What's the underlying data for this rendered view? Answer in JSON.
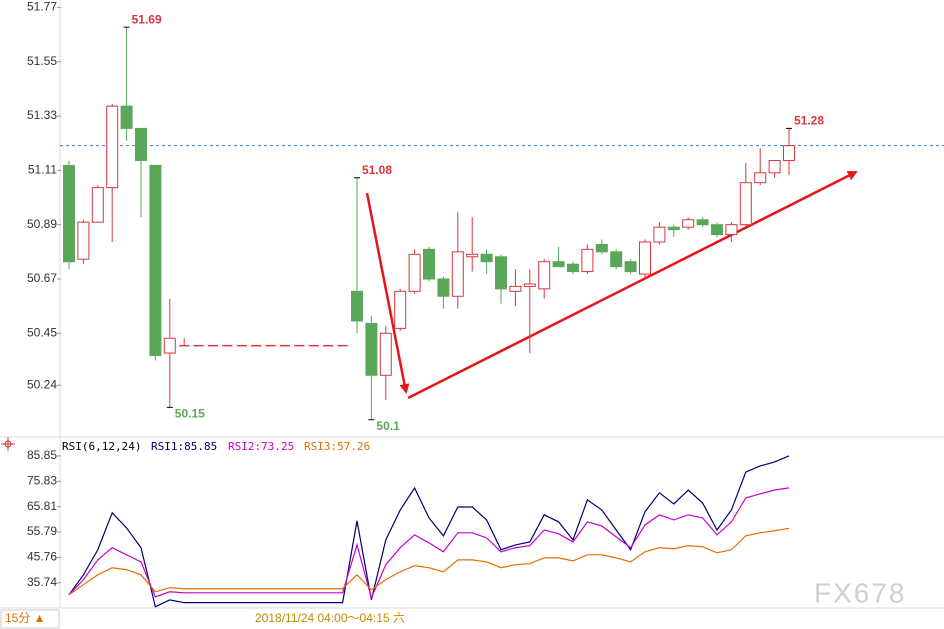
{
  "chart_data": [
    {
      "type": "candlestick",
      "open": [
        51.13,
        50.75,
        50.9,
        51.04,
        51.37,
        51.28,
        51.13,
        50.37,
        50.4,
        50.4,
        50.4,
        50.4,
        50.4,
        50.4,
        50.4,
        50.4,
        50.4,
        50.4,
        50.4,
        50.4,
        50.62,
        50.49,
        50.28,
        50.47,
        50.62,
        50.79,
        50.67,
        50.6,
        50.76,
        50.77,
        50.76,
        50.62,
        50.64,
        50.63,
        50.74,
        50.73,
        50.7,
        50.81,
        50.78,
        50.74,
        50.69,
        50.82,
        50.88,
        50.88,
        50.91,
        50.89,
        50.85,
        50.89,
        51.06,
        51.1,
        51.15
      ],
      "high": [
        51.15,
        50.91,
        51.05,
        51.38,
        51.69,
        51.28,
        51.13,
        50.59,
        50.43,
        50.4,
        50.4,
        50.4,
        50.4,
        50.4,
        50.4,
        50.4,
        50.4,
        50.4,
        50.4,
        50.4,
        51.08,
        50.52,
        50.48,
        50.63,
        50.79,
        50.8,
        50.68,
        50.94,
        50.92,
        50.79,
        50.77,
        50.71,
        50.71,
        50.75,
        50.8,
        50.74,
        50.81,
        50.83,
        50.79,
        50.75,
        50.83,
        50.9,
        50.89,
        50.92,
        50.92,
        50.9,
        50.9,
        51.14,
        51.2,
        51.15,
        51.28
      ],
      "low": [
        50.71,
        50.73,
        50.9,
        50.82,
        51.23,
        50.92,
        50.34,
        50.15,
        50.4,
        50.4,
        50.4,
        50.4,
        50.4,
        50.4,
        50.4,
        50.4,
        50.4,
        50.4,
        50.4,
        50.4,
        50.45,
        50.1,
        50.18,
        50.46,
        50.61,
        50.66,
        50.55,
        50.55,
        50.7,
        50.69,
        50.57,
        50.56,
        50.37,
        50.59,
        50.72,
        50.69,
        50.69,
        50.77,
        50.71,
        50.69,
        50.67,
        50.81,
        50.84,
        50.87,
        50.88,
        50.84,
        50.82,
        50.88,
        51.05,
        51.08,
        51.09
      ],
      "close": [
        50.74,
        50.9,
        51.04,
        51.37,
        51.28,
        51.15,
        50.36,
        50.43,
        50.4,
        50.4,
        50.4,
        50.4,
        50.4,
        50.4,
        50.4,
        50.4,
        50.4,
        50.4,
        50.4,
        50.4,
        50.5,
        50.28,
        50.45,
        50.62,
        50.77,
        50.67,
        50.6,
        50.78,
        50.77,
        50.74,
        50.63,
        50.64,
        50.65,
        50.74,
        50.72,
        50.7,
        50.79,
        50.78,
        50.72,
        50.7,
        50.82,
        50.88,
        50.87,
        50.91,
        50.89,
        50.85,
        50.89,
        51.06,
        51.1,
        51.15,
        51.21
      ],
      "up_color": "#d9363e",
      "down_color": "#5aa75a",
      "last_price_line": true,
      "ylim": [
        50.03,
        51.8
      ],
      "yticks": [
        51.77,
        51.55,
        51.33,
        51.11,
        50.89,
        50.67,
        50.45,
        50.24
      ]
    },
    {
      "type": "line",
      "title": "RSI(6,12,24)",
      "ylim": [
        25,
        89
      ],
      "yticks": [
        85.85,
        75.83,
        65.81,
        55.79,
        45.76,
        35.74
      ],
      "series": [
        {
          "name": "RSI1:85.85",
          "color": "#00006e",
          "values": [
            31.0,
            38.9,
            48.8,
            63.4,
            57.4,
            49.6,
            26.3,
            29.0,
            27.9,
            27.9,
            27.9,
            27.9,
            27.9,
            27.9,
            27.9,
            27.9,
            27.9,
            27.9,
            27.9,
            27.9,
            60.2,
            29.0,
            52.7,
            64.5,
            73.2,
            61.4,
            54.3,
            65.7,
            65.7,
            60.6,
            48.8,
            50.7,
            51.9,
            62.6,
            59.8,
            52.7,
            68.5,
            64.5,
            56.6,
            48.8,
            63.8,
            71.3,
            66.9,
            72.4,
            67.3,
            56.6,
            64.5,
            79.5,
            81.9,
            83.5,
            85.85
          ]
        },
        {
          "name": "RSI2:73.25",
          "color": "#cc00cc",
          "values": [
            31.0,
            37.0,
            44.8,
            49.6,
            46.8,
            44.0,
            30.2,
            32.2,
            31.8,
            31.8,
            31.8,
            31.8,
            31.8,
            31.8,
            31.8,
            31.8,
            31.8,
            31.8,
            31.8,
            31.8,
            50.7,
            29.8,
            42.9,
            49.6,
            54.7,
            51.5,
            48.0,
            55.5,
            55.5,
            53.5,
            48.0,
            49.6,
            50.4,
            56.6,
            55.1,
            51.9,
            59.8,
            58.2,
            53.9,
            49.6,
            58.6,
            62.6,
            60.6,
            62.6,
            61.4,
            54.7,
            59.8,
            69.3,
            70.9,
            72.4,
            73.25
          ]
        },
        {
          "name": "RSI3:57.26",
          "color": "#e07000",
          "values": [
            31.0,
            35.0,
            38.9,
            41.7,
            40.9,
            38.9,
            32.2,
            33.8,
            33.4,
            33.4,
            33.4,
            33.4,
            33.4,
            33.4,
            33.4,
            33.4,
            33.4,
            33.4,
            33.4,
            33.4,
            38.9,
            33.0,
            37.0,
            40.1,
            42.5,
            41.7,
            40.1,
            44.8,
            44.8,
            44.0,
            41.7,
            42.9,
            43.3,
            45.6,
            45.6,
            44.4,
            46.8,
            46.8,
            45.6,
            44.0,
            48.0,
            49.6,
            49.2,
            50.4,
            50.0,
            47.6,
            48.8,
            54.3,
            55.5,
            56.3,
            57.26
          ]
        }
      ]
    }
  ],
  "footer": {
    "period": "15分 ▲",
    "time": "2018/11/24 04:00～04:15 六"
  },
  "watermark": "FX678"
}
